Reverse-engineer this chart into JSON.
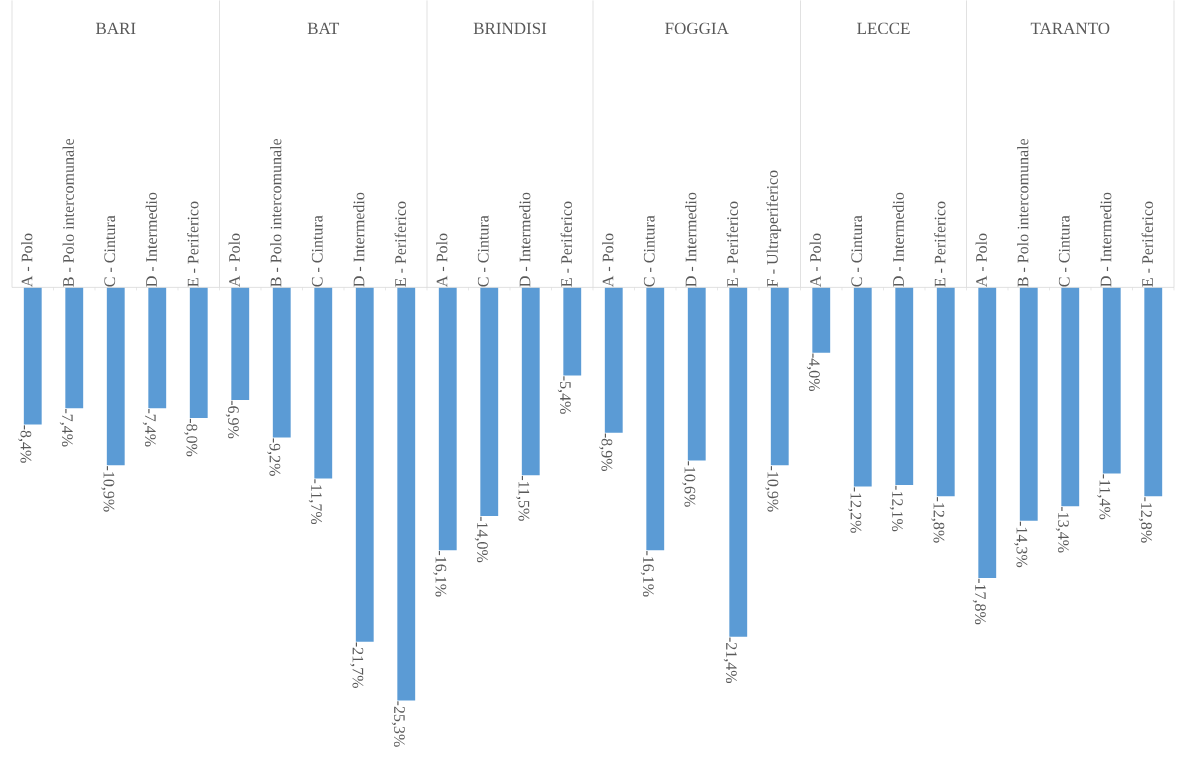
{
  "chart_data": [
    {
      "type": "bar",
      "title": "BARI",
      "categories": [
        "A - Polo",
        "B - Polo intercomunale",
        "C - Cintura",
        "D - Intermedio",
        "E - Periferico"
      ],
      "values": [
        -8.4,
        -7.4,
        -10.9,
        -7.4,
        -8.0
      ],
      "value_labels": [
        "-8,4%",
        "-7,4%",
        "-10,9%",
        "-7,4%",
        "-8,0%"
      ],
      "color": "#5b9bd5"
    },
    {
      "type": "bar",
      "title": "BAT",
      "categories": [
        "A - Polo",
        "B - Polo intercomunale",
        "C - Cintura",
        "D - Intermedio",
        "E - Periferico"
      ],
      "values": [
        -6.9,
        -9.2,
        -11.7,
        -21.7,
        -25.3
      ],
      "value_labels": [
        "-6,9%",
        "-9,2%",
        "-11,7%",
        "-21,7%",
        "-25,3%"
      ],
      "color": "#5b9bd5"
    },
    {
      "type": "bar",
      "title": "BRINDISI",
      "categories": [
        "A - Polo",
        "C - Cintura",
        "D - Intermedio",
        "E - Periferico"
      ],
      "values": [
        -16.1,
        -14.0,
        -11.5,
        -5.4
      ],
      "value_labels": [
        "-16,1%",
        "-14,0%",
        "-11,5%",
        "-5,4%"
      ],
      "color": "#5b9bd5"
    },
    {
      "type": "bar",
      "title": "FOGGIA",
      "categories": [
        "A - Polo",
        "C - Cintura",
        "D - Intermedio",
        "E - Periferico",
        "F - Ultraperiferico"
      ],
      "values": [
        -8.9,
        -16.1,
        -10.6,
        -21.4,
        -10.9
      ],
      "value_labels": [
        "-8,9%",
        "-16,1%",
        "-10,6%",
        "-21,4%",
        "-10,9%"
      ],
      "color": "#5b9bd5"
    },
    {
      "type": "bar",
      "title": "LECCE",
      "categories": [
        "A - Polo",
        "C - Cintura",
        "D - Intermedio",
        "E - Periferico"
      ],
      "values": [
        -4.0,
        -12.2,
        -12.1,
        -12.8
      ],
      "value_labels": [
        "-4,0%",
        "-12,2%",
        "-12,1%",
        "-12,8%"
      ],
      "color": "#5b9bd5"
    },
    {
      "type": "bar",
      "title": "TARANTO",
      "categories": [
        "A - Polo",
        "B - Polo intercomunale",
        "C - Cintura",
        "D - Intermedio",
        "E - Periferico"
      ],
      "values": [
        -17.8,
        -14.3,
        -13.4,
        -11.4,
        -12.8
      ],
      "value_labels": [
        "-17,8%",
        "-14,3%",
        "-13,4%",
        "-11,4%",
        "-12,8%"
      ],
      "color": "#5b9bd5"
    }
  ]
}
